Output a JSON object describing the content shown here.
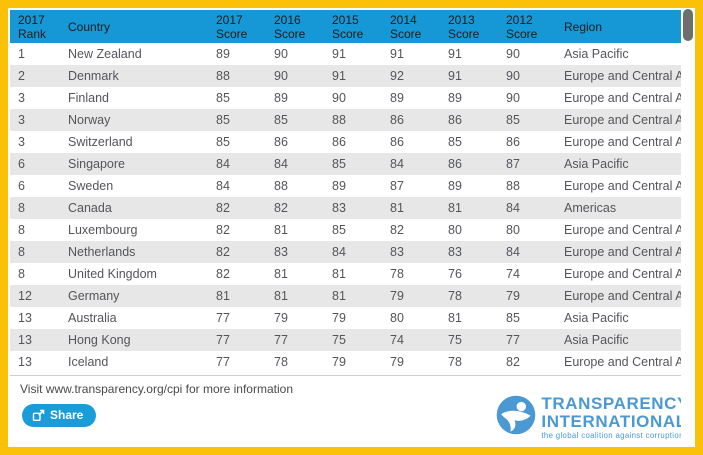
{
  "colors": {
    "frame": "#fbc108",
    "header_bg": "#1697d6",
    "row_alt_bg": "#e7e7e7",
    "accent_blue": "#199dd9",
    "logo_blue": "#4a99d3",
    "scroll_thumb": "#6d6d6d"
  },
  "table": {
    "columns": [
      {
        "key": "rank",
        "label": "2017\nRank"
      },
      {
        "key": "country",
        "label": "Country"
      },
      {
        "key": "s2017",
        "label": "2017\nScore"
      },
      {
        "key": "s2016",
        "label": "2016\nScore"
      },
      {
        "key": "s2015",
        "label": "2015\nScore"
      },
      {
        "key": "s2014",
        "label": "2014\nScore"
      },
      {
        "key": "s2013",
        "label": "2013\nScore"
      },
      {
        "key": "s2012",
        "label": "2012\nScore"
      },
      {
        "key": "region",
        "label": "Region"
      }
    ],
    "rows": [
      {
        "rank": "1",
        "country": "New Zealand",
        "s2017": "89",
        "s2016": "90",
        "s2015": "91",
        "s2014": "91",
        "s2013": "91",
        "s2012": "90",
        "region": "Asia Pacific"
      },
      {
        "rank": "2",
        "country": "Denmark",
        "s2017": "88",
        "s2016": "90",
        "s2015": "91",
        "s2014": "92",
        "s2013": "91",
        "s2012": "90",
        "region": "Europe and Central Asia"
      },
      {
        "rank": "3",
        "country": "Finland",
        "s2017": "85",
        "s2016": "89",
        "s2015": "90",
        "s2014": "89",
        "s2013": "89",
        "s2012": "90",
        "region": "Europe and Central Asia"
      },
      {
        "rank": "3",
        "country": "Norway",
        "s2017": "85",
        "s2016": "85",
        "s2015": "88",
        "s2014": "86",
        "s2013": "86",
        "s2012": "85",
        "region": "Europe and Central Asia"
      },
      {
        "rank": "3",
        "country": "Switzerland",
        "s2017": "85",
        "s2016": "86",
        "s2015": "86",
        "s2014": "86",
        "s2013": "85",
        "s2012": "86",
        "region": "Europe and Central Asia"
      },
      {
        "rank": "6",
        "country": "Singapore",
        "s2017": "84",
        "s2016": "84",
        "s2015": "85",
        "s2014": "84",
        "s2013": "86",
        "s2012": "87",
        "region": "Asia Pacific"
      },
      {
        "rank": "6",
        "country": "Sweden",
        "s2017": "84",
        "s2016": "88",
        "s2015": "89",
        "s2014": "87",
        "s2013": "89",
        "s2012": "88",
        "region": "Europe and Central Asia"
      },
      {
        "rank": "8",
        "country": "Canada",
        "s2017": "82",
        "s2016": "82",
        "s2015": "83",
        "s2014": "81",
        "s2013": "81",
        "s2012": "84",
        "region": "Americas"
      },
      {
        "rank": "8",
        "country": "Luxembourg",
        "s2017": "82",
        "s2016": "81",
        "s2015": "85",
        "s2014": "82",
        "s2013": "80",
        "s2012": "80",
        "region": "Europe and Central Asia"
      },
      {
        "rank": "8",
        "country": "Netherlands",
        "s2017": "82",
        "s2016": "83",
        "s2015": "84",
        "s2014": "83",
        "s2013": "83",
        "s2012": "84",
        "region": "Europe and Central Asia"
      },
      {
        "rank": "8",
        "country": "United Kingdom",
        "s2017": "82",
        "s2016": "81",
        "s2015": "81",
        "s2014": "78",
        "s2013": "76",
        "s2012": "74",
        "region": "Europe and Central Asia"
      },
      {
        "rank": "12",
        "country": "Germany",
        "s2017": "81",
        "s2016": "81",
        "s2015": "81",
        "s2014": "79",
        "s2013": "78",
        "s2012": "79",
        "region": "Europe and Central Asia"
      },
      {
        "rank": "13",
        "country": "Australia",
        "s2017": "77",
        "s2016": "79",
        "s2015": "79",
        "s2014": "80",
        "s2013": "81",
        "s2012": "85",
        "region": "Asia Pacific"
      },
      {
        "rank": "13",
        "country": "Hong Kong",
        "s2017": "77",
        "s2016": "77",
        "s2015": "75",
        "s2014": "74",
        "s2013": "75",
        "s2012": "77",
        "region": "Asia Pacific"
      },
      {
        "rank": "13",
        "country": "Iceland",
        "s2017": "77",
        "s2016": "78",
        "s2015": "79",
        "s2014": "79",
        "s2013": "78",
        "s2012": "82",
        "region": "Europe and Central Asia"
      }
    ]
  },
  "footer": {
    "info_text": "Visit www.transparency.org/cpi for more information",
    "share_label": "Share"
  },
  "logo": {
    "name_line1": "TRANSPARENCY",
    "name_line2": "INTERNATIONAL",
    "tagline": "the global coalition against corruption"
  }
}
